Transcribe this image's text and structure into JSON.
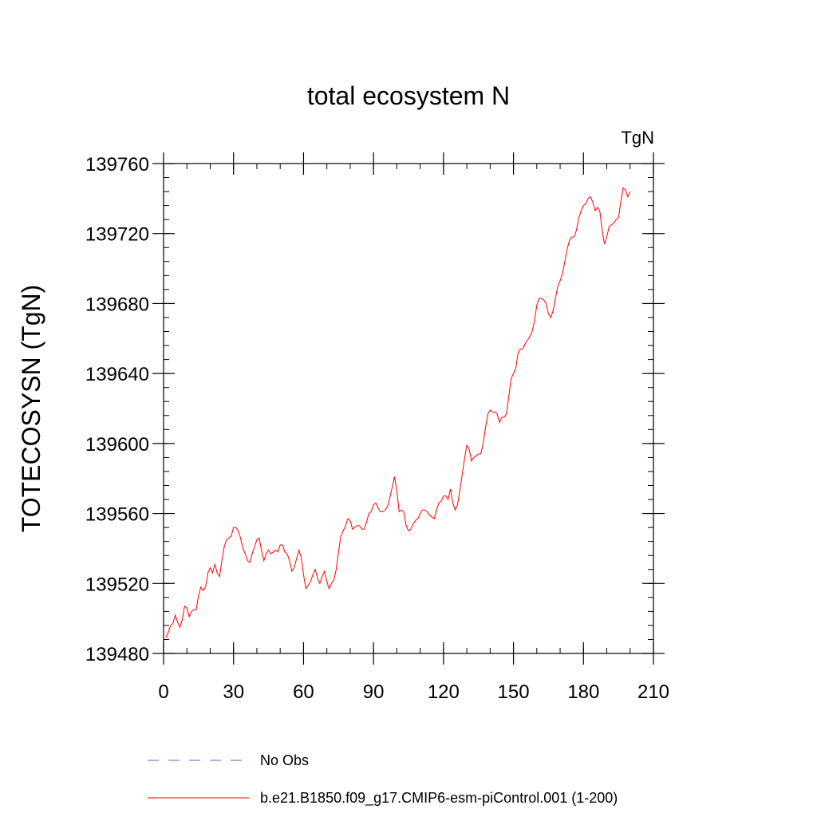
{
  "chart_data": {
    "type": "line",
    "title": "total ecosystem N",
    "units": "TgN",
    "xlabel": "",
    "ylabel": "TOTECOSYSN  (TgN)",
    "xlim": [
      0,
      210
    ],
    "ylim": [
      139480,
      139760
    ],
    "xticks": [
      0,
      30,
      60,
      90,
      120,
      150,
      180,
      210
    ],
    "yticks": [
      139480,
      139520,
      139560,
      139600,
      139640,
      139680,
      139720,
      139760
    ],
    "x_minor_step": 10,
    "y_minor_step": 8,
    "series": [
      {
        "name": "No Obs",
        "label": "No Obs",
        "color": "#6a5acd",
        "dash": "dashed",
        "x": [],
        "y": []
      },
      {
        "name": "b.e21.B1850.f09_g17.CMIP6-esm-piControl.001 (1-200)",
        "label": "b.e21.B1850.f09_g17.CMIP6-esm-piControl.001 (1-200)",
        "color": "#ff0000",
        "dash": "solid",
        "x": [
          1,
          2,
          3,
          4,
          5,
          6,
          7,
          8,
          9,
          10,
          11,
          12,
          13,
          14,
          15,
          16,
          17,
          18,
          19,
          20,
          21,
          22,
          23,
          24,
          25,
          26,
          27,
          28,
          29,
          30,
          31,
          32,
          33,
          34,
          35,
          36,
          37,
          38,
          39,
          40,
          41,
          42,
          43,
          44,
          45,
          46,
          47,
          48,
          49,
          50,
          51,
          52,
          53,
          54,
          55,
          56,
          57,
          58,
          59,
          60,
          61,
          62,
          63,
          64,
          65,
          66,
          67,
          68,
          69,
          70,
          71,
          72,
          73,
          74,
          75,
          76,
          77,
          78,
          79,
          80,
          81,
          82,
          83,
          84,
          85,
          86,
          87,
          88,
          89,
          90,
          91,
          92,
          93,
          94,
          95,
          96,
          97,
          98,
          99,
          100,
          101,
          102,
          103,
          104,
          105,
          106,
          107,
          108,
          109,
          110,
          111,
          112,
          113,
          114,
          115,
          116,
          117,
          118,
          119,
          120,
          121,
          122,
          123,
          124,
          125,
          126,
          127,
          128,
          129,
          130,
          131,
          132,
          133,
          134,
          135,
          136,
          137,
          138,
          139,
          140,
          141,
          142,
          143,
          144,
          145,
          146,
          147,
          148,
          149,
          150,
          151,
          152,
          153,
          154,
          155,
          156,
          157,
          158,
          159,
          160,
          161,
          162,
          163,
          164,
          165,
          166,
          167,
          168,
          169,
          170,
          171,
          172,
          173,
          174,
          175,
          176,
          177,
          178,
          179,
          180,
          181,
          182,
          183,
          184,
          185,
          186,
          187,
          188,
          189,
          190,
          191,
          192,
          193,
          194,
          195,
          196,
          197,
          198,
          199,
          200
        ],
        "y": [
          139489,
          139492,
          139496,
          139497,
          139502,
          139498,
          139495,
          139499,
          139507,
          139506,
          139501,
          139504,
          139505,
          139505,
          139513,
          139518,
          139516,
          139518,
          139526,
          139529,
          139526,
          139531,
          139526,
          139524,
          139533,
          139541,
          139545,
          139546,
          139547,
          139552,
          139552,
          139550,
          139546,
          139540,
          139537,
          139533,
          139532,
          139537,
          139541,
          139545,
          139546,
          139539,
          139533,
          139537,
          139539,
          139537,
          139538,
          139539,
          139538,
          139542,
          139542,
          139538,
          139537,
          139533,
          139527,
          139529,
          139534,
          139539,
          139535,
          139525,
          139517,
          139519,
          139521,
          139525,
          139528,
          139523,
          139520,
          139524,
          139527,
          139521,
          139517,
          139520,
          139522,
          139528,
          139538,
          139547,
          139550,
          139553,
          139557,
          139556,
          139551,
          139552,
          139553,
          139553,
          139551,
          139551,
          139555,
          139560,
          139561,
          139565,
          139566,
          139563,
          139561,
          139561,
          139562,
          139564,
          139569,
          139575,
          139581,
          139573,
          139561,
          139562,
          139561,
          139553,
          139550,
          139551,
          139554,
          139556,
          139557,
          139560,
          139562,
          139562,
          139561,
          139559,
          139558,
          139557,
          139562,
          139566,
          139567,
          139570,
          139570,
          139568,
          139574,
          139566,
          139562,
          139565,
          139573,
          139582,
          139591,
          139599,
          139597,
          139590,
          139592,
          139593,
          139594,
          139594,
          139600,
          139609,
          139617,
          139619,
          139618,
          139618,
          139617,
          139612,
          139615,
          139615,
          139617,
          139627,
          139637,
          139640,
          139643,
          139652,
          139654,
          139654,
          139657,
          139659,
          139661,
          139664,
          139670,
          139679,
          139683,
          139683,
          139682,
          139680,
          139674,
          139672,
          139676,
          139683,
          139690,
          139693,
          139697,
          139704,
          139711,
          139716,
          139718,
          139718,
          139722,
          139729,
          139733,
          139736,
          139737,
          139740,
          139741,
          139738,
          139733,
          139735,
          139733,
          139722,
          139714,
          139718,
          139724,
          139725,
          139726,
          139728,
          139729,
          139738,
          139746,
          139745,
          139741,
          139744
        ]
      }
    ],
    "legend_position": "bottom-center"
  }
}
